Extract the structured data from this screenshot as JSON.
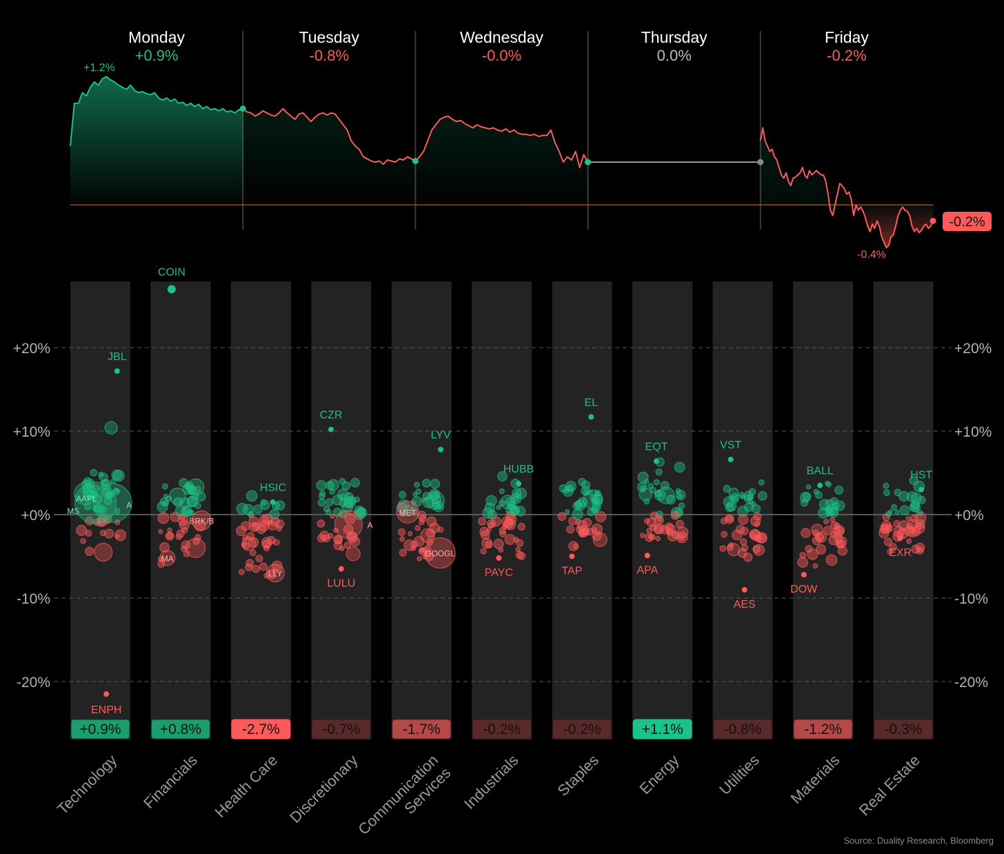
{
  "colors": {
    "up": "#1fbf86",
    "down": "#ff5a5a",
    "flat": "#bdbdbd",
    "bg": "#000000",
    "column": "#232323",
    "baseline": "#c0562b"
  },
  "chart_data": [
    {
      "type": "line",
      "title": "",
      "days": [
        {
          "name": "Monday",
          "change": "+0.9%",
          "dir": "up"
        },
        {
          "name": "Tuesday",
          "change": "-0.8%",
          "dir": "down"
        },
        {
          "name": "Wednesday",
          "change": "-0.0%",
          "dir": "down"
        },
        {
          "name": "Thursday",
          "change": "0.0%",
          "dir": "flat"
        },
        {
          "name": "Friday",
          "change": "-0.2%",
          "dir": "down"
        }
      ],
      "series": [
        {
          "day": "Monday",
          "dir": "up",
          "values": [
            0.55,
            0.95,
            0.95,
            1.05,
            1.02,
            1.1,
            1.15,
            1.12,
            1.18,
            1.2,
            1.17,
            1.15,
            1.12,
            1.1,
            1.08,
            1.12,
            1.07,
            1.05,
            1.06,
            1.04,
            1.03,
            1.05,
            1.0,
            0.98,
            1.0,
            0.97,
            0.99,
            0.95,
            0.96,
            0.93,
            0.95,
            0.92,
            0.94,
            0.9,
            0.92,
            0.89,
            0.9,
            0.88,
            0.9,
            0.87,
            0.88,
            0.86,
            0.89,
            0.9
          ]
        },
        {
          "day": "Tuesday",
          "dir": "down",
          "values": [
            0.9,
            0.87,
            0.86,
            0.83,
            0.85,
            0.88,
            0.86,
            0.84,
            0.83,
            0.86,
            0.9,
            0.86,
            0.83,
            0.8,
            0.85,
            0.86,
            0.82,
            0.78,
            0.82,
            0.85,
            0.86,
            0.84,
            0.86,
            0.85,
            0.8,
            0.75,
            0.7,
            0.6,
            0.55,
            0.52,
            0.45,
            0.43,
            0.41,
            0.4,
            0.41,
            0.38,
            0.42,
            0.41,
            0.4,
            0.43,
            0.42,
            0.45,
            0.43,
            0.41
          ]
        },
        {
          "day": "Wednesday",
          "dir": "down",
          "values": [
            0.41,
            0.45,
            0.5,
            0.6,
            0.7,
            0.75,
            0.8,
            0.82,
            0.83,
            0.8,
            0.78,
            0.79,
            0.76,
            0.74,
            0.72,
            0.75,
            0.73,
            0.72,
            0.71,
            0.72,
            0.7,
            0.69,
            0.71,
            0.68,
            0.7,
            0.67,
            0.66,
            0.66,
            0.65,
            0.66,
            0.64,
            0.65,
            0.65,
            0.7,
            0.58,
            0.5,
            0.4,
            0.45,
            0.42,
            0.5,
            0.35,
            0.47,
            0.4
          ]
        },
        {
          "day": "Thursday",
          "dir": "flat",
          "values": [
            0.4,
            0.4
          ]
        },
        {
          "day": "Friday",
          "dir": "down",
          "values": [
            0.6,
            0.72,
            0.6,
            0.55,
            0.5,
            0.52,
            0.45,
            0.42,
            0.35,
            0.28,
            0.25,
            0.3,
            0.22,
            0.18,
            0.25,
            0.26,
            0.28,
            0.3,
            0.35,
            0.28,
            0.25,
            0.32,
            0.28,
            0.3,
            0.32,
            0.3,
            0.28,
            0.28,
            0.22,
            0.1,
            -0.05,
            -0.1,
            0.0,
            0.1,
            0.2,
            0.18,
            0.15,
            0.1,
            0.12,
            0.05,
            -0.1,
            0.0,
            -0.05,
            -0.02,
            -0.06,
            -0.12,
            -0.2,
            -0.25,
            -0.18,
            -0.22,
            -0.15,
            -0.2,
            -0.3,
            -0.35,
            -0.4,
            -0.38,
            -0.3,
            -0.28,
            -0.2,
            -0.1,
            -0.05,
            -0.02,
            -0.05,
            -0.06,
            -0.1,
            -0.2,
            -0.25,
            -0.22,
            -0.26,
            -0.24,
            -0.2,
            -0.18,
            -0.22,
            -0.2,
            -0.15
          ]
        }
      ],
      "annotations": [
        {
          "text": "+1.2%",
          "dir": "up"
        },
        {
          "text": "-0.4%",
          "dir": "down"
        }
      ],
      "end_label": "-0.2%"
    },
    {
      "type": "scatter",
      "y_ticks": [
        "+20%",
        "+10%",
        "+0%",
        "-10%",
        "-20%"
      ],
      "y_tick_values": [
        20,
        10,
        0,
        -10,
        -20
      ],
      "ylim": [
        -26,
        28
      ],
      "sectors": [
        {
          "name": "Technology",
          "lines": [
            "Technology"
          ],
          "change": "+0.9%",
          "badge": "up-strong",
          "labels": [
            {
              "text": "JBL",
              "v": 17.2,
              "dir": "up"
            },
            {
              "text": "ENPH",
              "v": -21.5,
              "dir": "down"
            },
            {
              "text": "AAPL",
              "v": 2.0,
              "dir": "up",
              "inside": true
            },
            {
              "text": "MS",
              "v": 0.5,
              "dir": "up",
              "inside": true
            },
            {
              "text": "A",
              "v": 1.2,
              "dir": "up",
              "inside": true
            }
          ]
        },
        {
          "name": "Financials",
          "lines": [
            "Financials"
          ],
          "change": "+0.8%",
          "badge": "up-strong",
          "labels": [
            {
              "text": "COIN",
              "v": 27.0,
              "dir": "up"
            },
            {
              "text": "MA",
              "v": -5.2,
              "dir": "down",
              "inside": true
            },
            {
              "text": "BRK/B",
              "v": -0.7,
              "dir": "down",
              "inside": true
            }
          ]
        },
        {
          "name": "Health Care",
          "lines": [
            "Health Care"
          ],
          "change": "-2.7%",
          "badge": "down-strong",
          "labels": [
            {
              "text": "HSIC",
              "v": 1.5,
              "dir": "up"
            },
            {
              "text": "LLY",
              "v": -7.0,
              "dir": "down",
              "inside": true
            }
          ]
        },
        {
          "name": "Discretionary",
          "lines": [
            "Discretionary"
          ],
          "change": "-0.7%",
          "badge": "down-weak",
          "labels": [
            {
              "text": "CZR",
              "v": 10.2,
              "dir": "up"
            },
            {
              "text": "LULU",
              "v": -6.5,
              "dir": "down"
            },
            {
              "text": "A",
              "v": -1.2,
              "dir": "down",
              "inside": true
            }
          ]
        },
        {
          "name": "Communication Services",
          "lines": [
            "Communication",
            "Services"
          ],
          "change": "-1.7%",
          "badge": "down-mid",
          "labels": [
            {
              "text": "LYV",
              "v": 7.8,
              "dir": "up"
            },
            {
              "text": "GOOGL",
              "v": -4.6,
              "dir": "down",
              "inside": true
            },
            {
              "text": "MET",
              "v": 0.3,
              "dir": "down",
              "inside": true
            }
          ]
        },
        {
          "name": "Industrials",
          "lines": [
            "Industrials"
          ],
          "change": "-0.2%",
          "badge": "down-weak",
          "labels": [
            {
              "text": "HUBB",
              "v": 3.7,
              "dir": "up"
            },
            {
              "text": "PAYC",
              "v": -5.2,
              "dir": "down"
            }
          ]
        },
        {
          "name": "Staples",
          "lines": [
            "Staples"
          ],
          "change": "-0.2%",
          "badge": "down-weak",
          "labels": [
            {
              "text": "EL",
              "v": 11.7,
              "dir": "up"
            },
            {
              "text": "TAP",
              "v": -5.0,
              "dir": "down"
            }
          ]
        },
        {
          "name": "Energy",
          "lines": [
            "Energy"
          ],
          "change": "+1.1%",
          "badge": "up-bright",
          "labels": [
            {
              "text": "EQT",
              "v": 6.4,
              "dir": "up"
            },
            {
              "text": "APA",
              "v": -4.9,
              "dir": "down"
            }
          ]
        },
        {
          "name": "Utilities",
          "lines": [
            "Utilities"
          ],
          "change": "-0.8%",
          "badge": "down-weak",
          "labels": [
            {
              "text": "VST",
              "v": 6.6,
              "dir": "up"
            },
            {
              "text": "AES",
              "v": -9.0,
              "dir": "down"
            }
          ]
        },
        {
          "name": "Materials",
          "lines": [
            "Materials"
          ],
          "change": "-1.2%",
          "badge": "down-mid",
          "labels": [
            {
              "text": "BALL",
              "v": 3.5,
              "dir": "up"
            },
            {
              "text": "DOW",
              "v": -7.2,
              "dir": "down"
            }
          ]
        },
        {
          "name": "Real Estate",
          "lines": [
            "Real Estate"
          ],
          "change": "-0.3%",
          "badge": "down-weak",
          "labels": [
            {
              "text": "HST",
              "v": 3.0,
              "dir": "up"
            },
            {
              "text": "EXR",
              "v": -2.8,
              "dir": "down"
            }
          ]
        }
      ]
    }
  ],
  "source": "Source: Duality Research, Bloomberg"
}
